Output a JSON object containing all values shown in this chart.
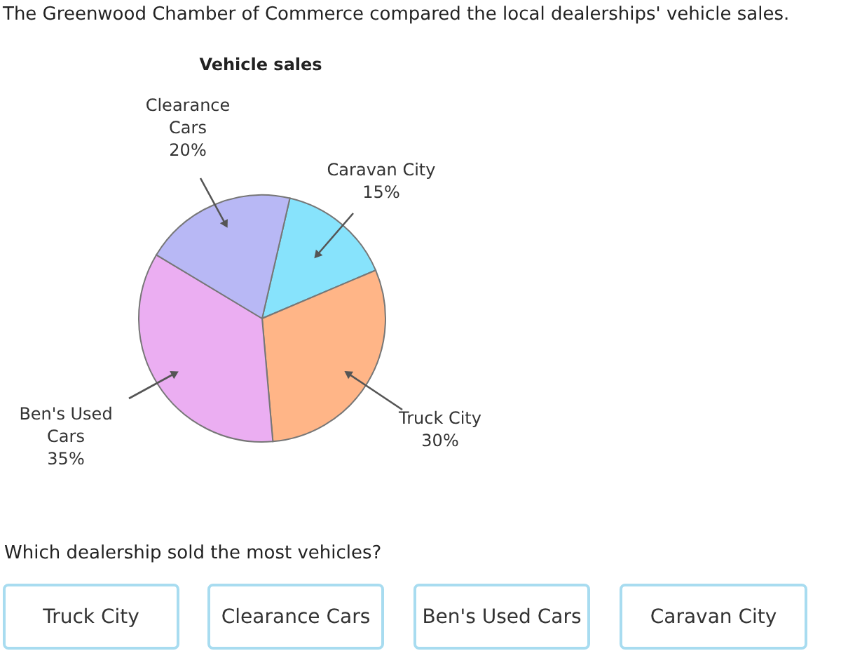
{
  "chart_data": {
    "type": "pie",
    "title": "Vehicle sales",
    "categories": [
      "Caravan City",
      "Truck City",
      "Ben's Used Cars",
      "Clearance Cars"
    ],
    "values": [
      15,
      30,
      35,
      20
    ],
    "value_labels": [
      "15%",
      "30%",
      "35%",
      "20%"
    ],
    "colors": [
      "#87e3fc",
      "#ffb587",
      "#ebaef2",
      "#b8b8f5"
    ],
    "annotations": [
      "The Greenwood Chamber of Commerce compared the local dealerships' vehicle sales.",
      "Which dealership sold the most vehicles?",
      "Truck City",
      "Clearance Cars",
      "Ben's Used Cars",
      "Caravan City"
    ]
  }
}
